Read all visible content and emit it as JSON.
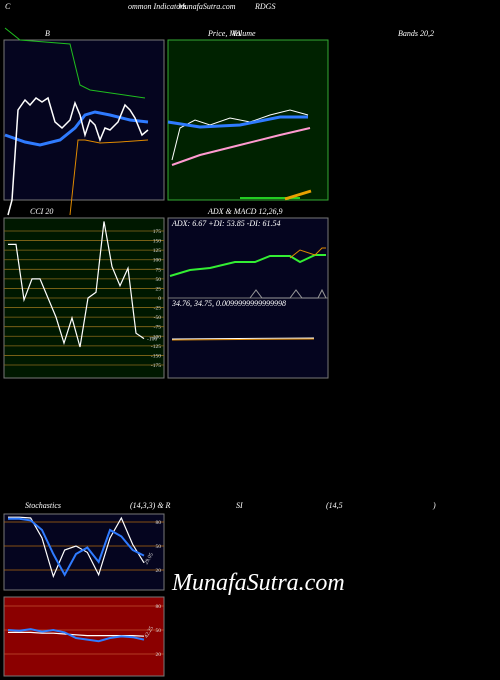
{
  "header": {
    "c": "C",
    "indicators": "ommon Indicators",
    "site": "MunafaSutra.com",
    "symbol": "RDGS"
  },
  "labels": {
    "bollinger_left": "B",
    "price": "Price, MA",
    "volume": "Volume",
    "bollinger_right": "Bands 20,2",
    "cci": "CCI 20",
    "adx_macd": "ADX  & MACD 12,26,9",
    "stoch": "Stochastics",
    "stoch_params": "(14,3,3) & R",
    "rsi": "SI",
    "rsi_params": "(14,5",
    "rsi_close": ")"
  },
  "adx_text": "ADX: 6.67 +DI: 53.85 -DI: 61.54",
  "macd_text": "34.76, 34.75, 0.0099999999999998",
  "watermark": "MunafaSutra.com",
  "cci": {
    "ylim": [
      -209,
      209
    ],
    "yticks": [
      175,
      150,
      125,
      100,
      75,
      50,
      25,
      0,
      -25,
      -50,
      -75,
      -100,
      -125,
      -150,
      -175
    ],
    "values": [
      140,
      140,
      -5,
      50,
      50,
      0,
      -50,
      -118,
      -52,
      -128,
      0,
      15,
      200,
      82,
      32,
      78,
      -92,
      -106
    ],
    "last_label": "-106",
    "color": "#ffffff"
  },
  "stochastics": {
    "ylim": [
      -5,
      90
    ],
    "yticks": [
      20,
      50,
      80
    ],
    "series": [
      {
        "color": "#ffffff",
        "values": [
          86,
          86,
          85,
          60,
          12,
          45,
          50,
          42,
          14,
          60,
          85,
          52,
          29.05
        ]
      },
      {
        "color": "#2f7bff",
        "values": [
          84,
          84,
          82,
          70,
          40,
          14,
          40,
          48,
          30,
          70,
          62,
          45,
          38
        ]
      }
    ],
    "last_label": "29.05"
  },
  "rsi": {
    "ylim": [
      -7.5,
      91.25
    ],
    "yticks": [
      20,
      50,
      80
    ],
    "series": [
      {
        "color": "#ffffff",
        "values": [
          47,
          47,
          47,
          46,
          46,
          45,
          44,
          43,
          43,
          43,
          43,
          43,
          42.25
        ]
      },
      {
        "color": "#2f7bff",
        "values": [
          50,
          49,
          51,
          48,
          50,
          47,
          40,
          38,
          36,
          40,
          42,
          41,
          38
        ]
      }
    ],
    "last_label": "42.25"
  }
}
